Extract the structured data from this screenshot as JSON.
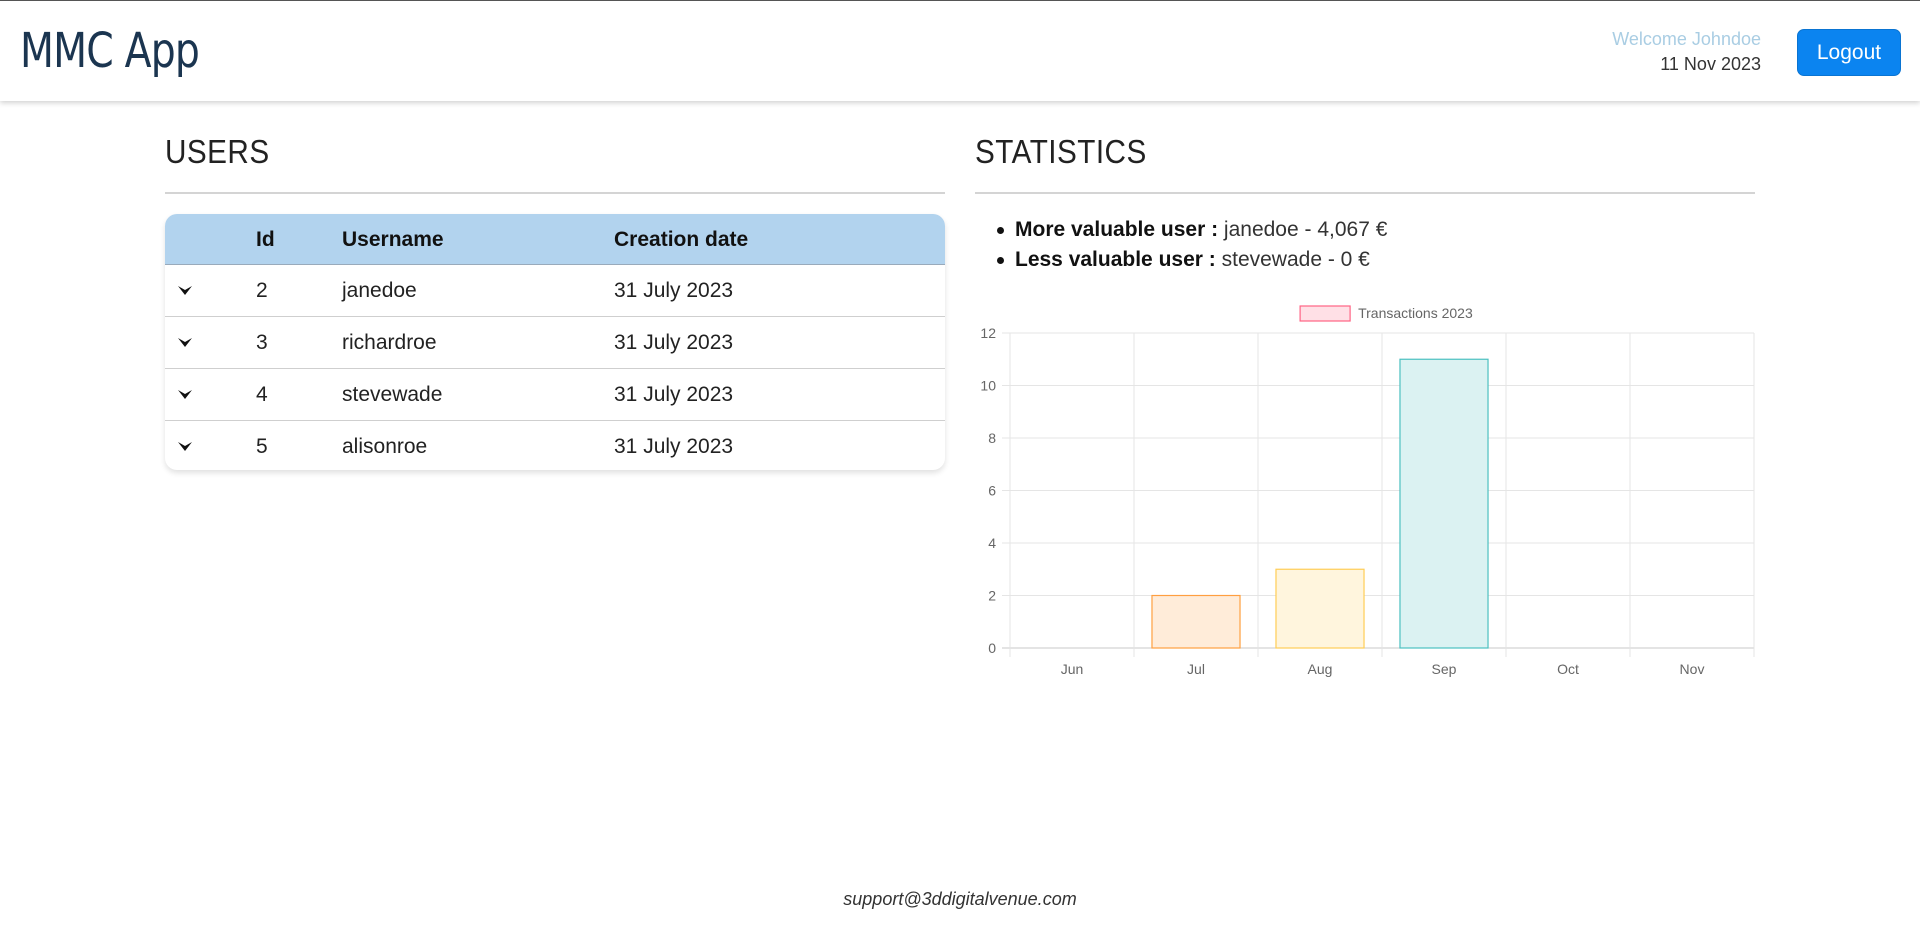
{
  "header": {
    "app_title": "MMC App",
    "welcome_text": "Welcome Johndoe",
    "date": "11 Nov 2023",
    "logout_label": "Logout"
  },
  "users": {
    "title": "USERS",
    "columns": [
      "Id",
      "Username",
      "Creation date"
    ],
    "rows": [
      {
        "id": "2",
        "username": "janedoe",
        "created": "31 July 2023"
      },
      {
        "id": "3",
        "username": "richardroe",
        "created": "31 July 2023"
      },
      {
        "id": "4",
        "username": "stevewade",
        "created": "31 July 2023"
      },
      {
        "id": "5",
        "username": "alisonroe",
        "created": "31 July 2023"
      }
    ]
  },
  "statistics": {
    "title": "STATISTICS",
    "more_valuable_label": "More valuable user :",
    "more_valuable_value": "janedoe - 4,067 €",
    "less_valuable_label": "Less valuable user :",
    "less_valuable_value": "stevewade - 0 €"
  },
  "chart_data": {
    "type": "bar",
    "categories": [
      "Jun",
      "Jul",
      "Aug",
      "Sep",
      "Oct",
      "Nov"
    ],
    "series": [
      {
        "name": "Transactions 2023",
        "values": [
          0,
          2,
          3,
          11,
          0,
          0
        ]
      }
    ],
    "ylim": [
      0,
      12
    ],
    "yticks": [
      0,
      2,
      4,
      6,
      8,
      10,
      12
    ],
    "grid": true,
    "legend": "top-center",
    "colors": {
      "fills": [
        "#ffe0e6",
        "#ffecd9",
        "#fff5dd",
        "#dbf2f2",
        "#ebe0ff",
        "#e6e7ea"
      ],
      "strokes": [
        "#ff6384",
        "#ff9f40",
        "#ffcd56",
        "#4bc0c0",
        "#9966ff",
        "#c9cbcf"
      ],
      "legend_fill": "#ffe0e6",
      "legend_stroke": "#ff6384"
    }
  },
  "footer": {
    "email": "support@3ddigitalvenue.com"
  }
}
